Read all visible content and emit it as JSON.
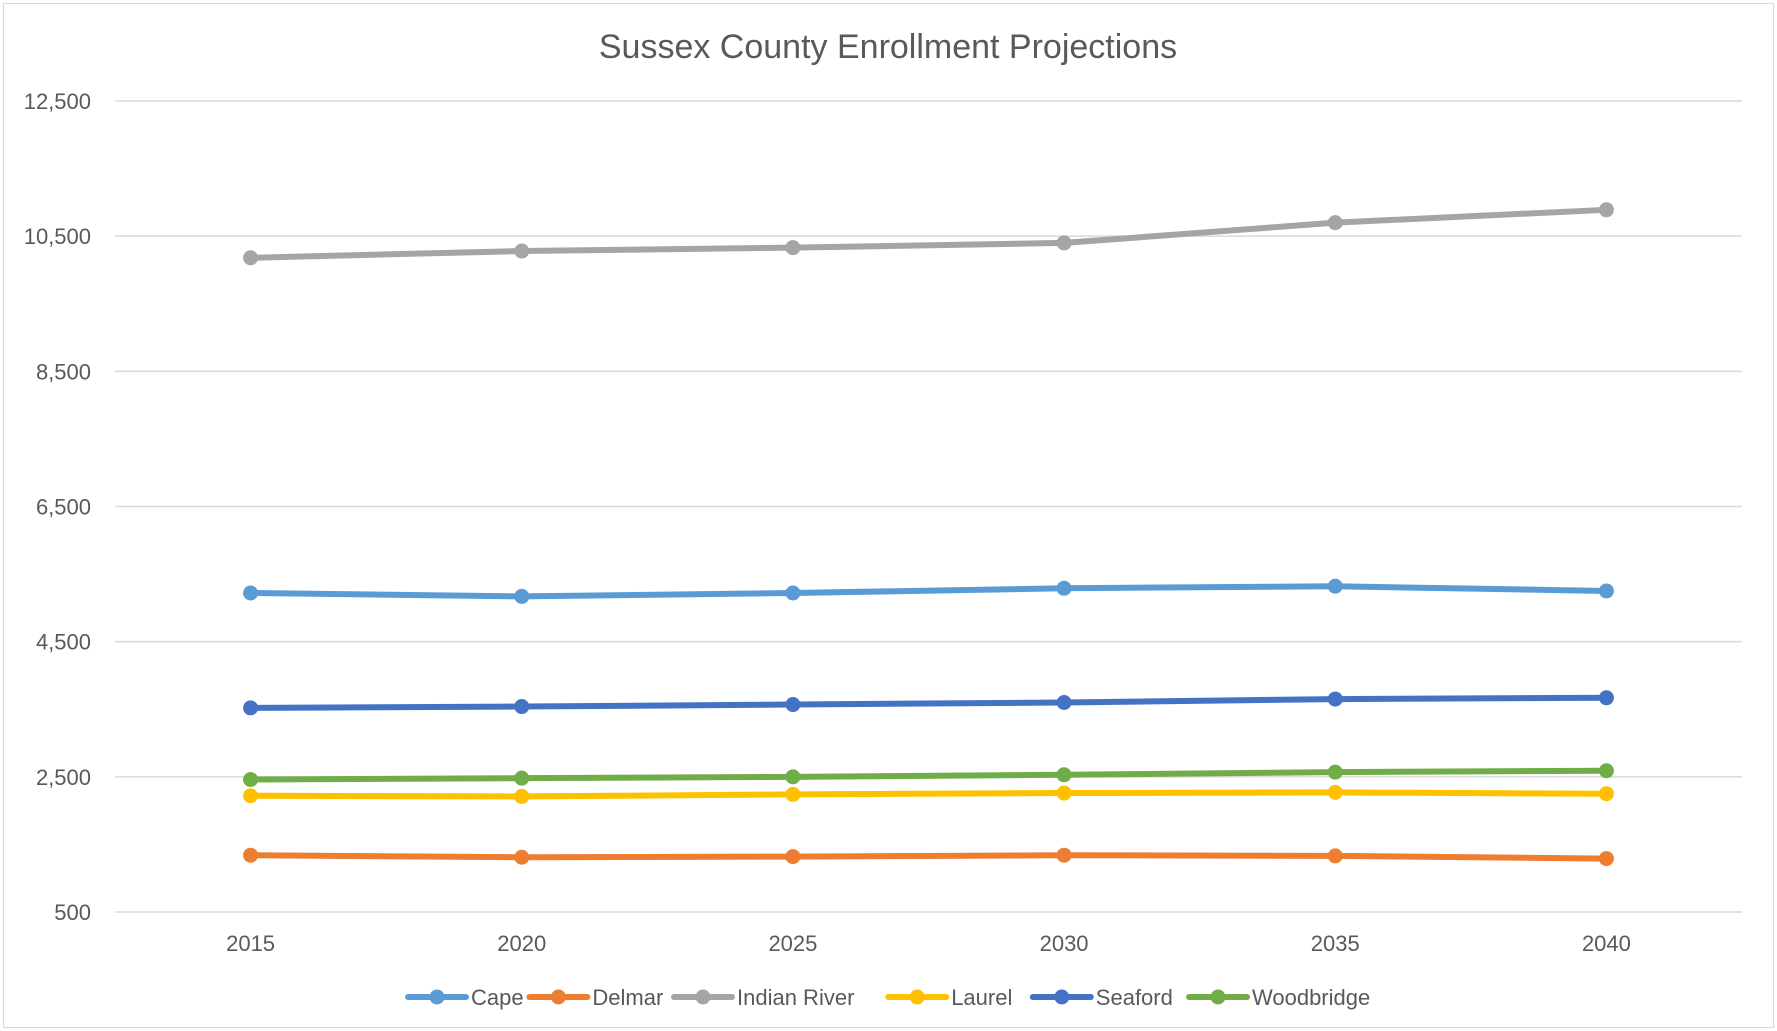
{
  "chart_data": {
    "type": "line",
    "title": "Sussex County Enrollment Projections",
    "xlabel": "",
    "ylabel": "",
    "categories": [
      "2015",
      "2020",
      "2025",
      "2030",
      "2035",
      "2040"
    ],
    "ylim": [
      500,
      12500
    ],
    "yticks": [
      500,
      2500,
      4500,
      6500,
      8500,
      10500,
      12500
    ],
    "ytick_labels": [
      "500",
      "2,500",
      "4,500",
      "6,500",
      "8,500",
      "10,500",
      "12,500"
    ],
    "grid": true,
    "legend_position": "bottom",
    "series": [
      {
        "name": "Cape",
        "color": "#5b9bd5",
        "values": [
          5220,
          5170,
          5220,
          5290,
          5320,
          5250
        ]
      },
      {
        "name": "Delmar",
        "color": "#ed7d31",
        "values": [
          1340,
          1310,
          1320,
          1340,
          1330,
          1290
        ]
      },
      {
        "name": "Indian River",
        "color": "#a5a5a5",
        "values": [
          10180,
          10280,
          10330,
          10400,
          10700,
          10890
        ]
      },
      {
        "name": "Laurel",
        "color": "#ffc000",
        "values": [
          2220,
          2210,
          2240,
          2260,
          2270,
          2250
        ]
      },
      {
        "name": "Seaford",
        "color": "#4472c4",
        "values": [
          3520,
          3540,
          3570,
          3600,
          3650,
          3670
        ]
      },
      {
        "name": "Woodbridge",
        "color": "#70ad47",
        "values": [
          2460,
          2480,
          2500,
          2530,
          2570,
          2590
        ]
      }
    ]
  }
}
